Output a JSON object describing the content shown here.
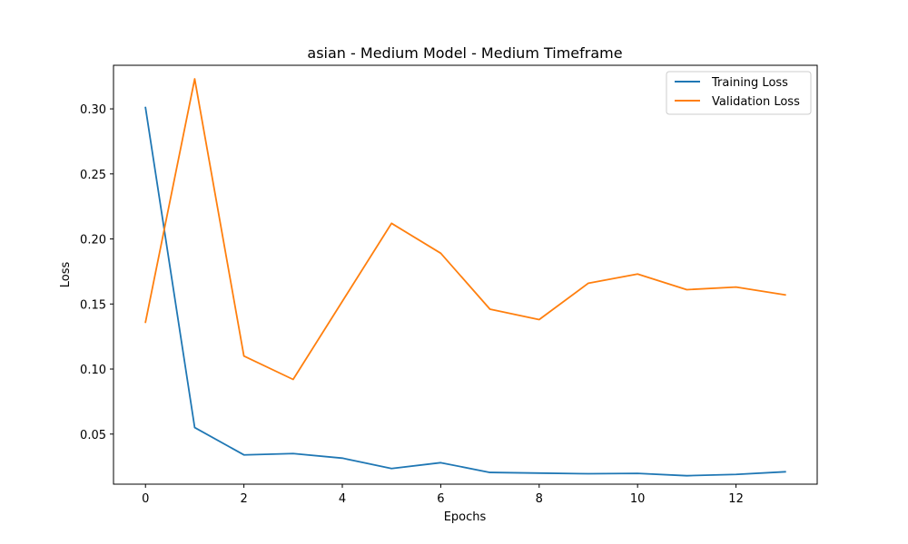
{
  "chart_data": {
    "type": "line",
    "title": "asian - Medium Model - Medium Timeframe",
    "xlabel": "Epochs",
    "ylabel": "Loss",
    "x": [
      0,
      1,
      2,
      3,
      4,
      5,
      6,
      7,
      8,
      9,
      10,
      11,
      12,
      13
    ],
    "xlim": [
      -0.65,
      13.65
    ],
    "ylim": [
      0.0115,
      0.3335
    ],
    "xticks": [
      0,
      2,
      4,
      6,
      8,
      10,
      12
    ],
    "xtick_labels": [
      "0",
      "2",
      "4",
      "6",
      "8",
      "10",
      "12"
    ],
    "yticks": [
      0.05,
      0.1,
      0.15,
      0.2,
      0.25,
      0.3
    ],
    "ytick_labels": [
      "0.05",
      "0.10",
      "0.15",
      "0.20",
      "0.25",
      "0.30"
    ],
    "grid": false,
    "legend_position": "top-right",
    "series": [
      {
        "name": "Training Loss",
        "color": "#1f77b4",
        "values": [
          0.301,
          0.055,
          0.034,
          0.035,
          0.0315,
          0.0235,
          0.028,
          0.0205,
          0.02,
          0.0195,
          0.0198,
          0.018,
          0.019,
          0.021
        ]
      },
      {
        "name": "Validation Loss",
        "color": "#ff7f0e",
        "values": [
          0.136,
          0.323,
          0.11,
          0.092,
          0.152,
          0.212,
          0.189,
          0.146,
          0.138,
          0.166,
          0.173,
          0.161,
          0.163,
          0.157
        ]
      }
    ]
  }
}
